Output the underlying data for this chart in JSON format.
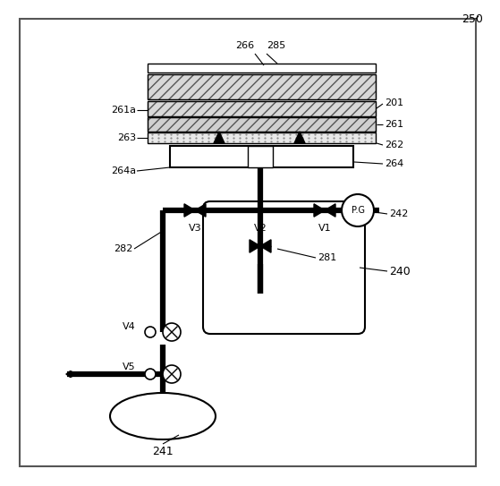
{
  "bg_color": "#ffffff",
  "label_250": "250",
  "label_266": "266",
  "label_285": "285",
  "label_201": "201",
  "label_261a": "261a",
  "label_261": "261",
  "label_263": "263",
  "label_262": "262",
  "label_264": "264",
  "label_264a": "264a",
  "label_242": "242",
  "label_V1": "V1",
  "label_V2": "V2",
  "label_V3": "V3",
  "label_V4": "V4",
  "label_V5": "V5",
  "label_PG": "P.G",
  "label_282": "282",
  "label_281": "281",
  "label_240": "240",
  "label_241": "241"
}
